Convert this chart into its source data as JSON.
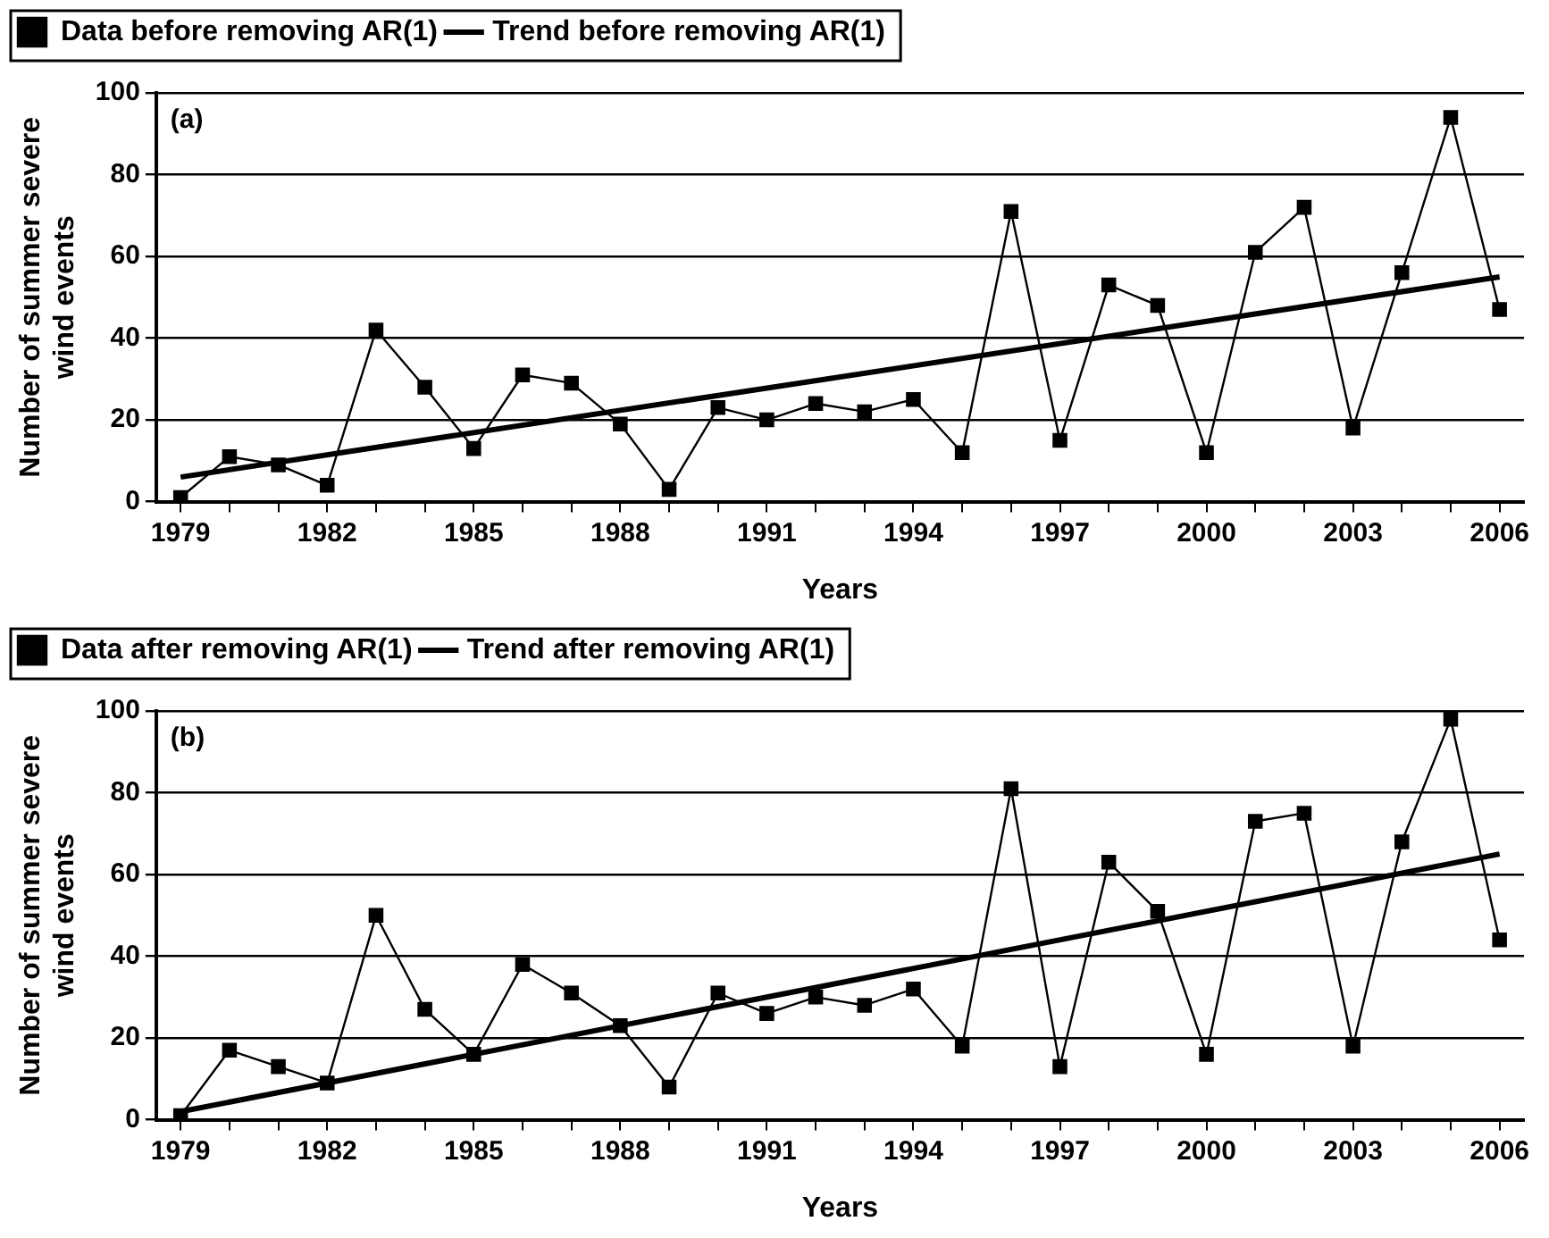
{
  "chart_data": [
    {
      "type": "line",
      "xlabel": "Years",
      "ylabel": "Number of summer severe wind events",
      "annotations": [
        "(a)"
      ],
      "categories": [
        "1979",
        null,
        null,
        "1982",
        null,
        null,
        "1985",
        null,
        null,
        "1988",
        null,
        null,
        "1991",
        null,
        null,
        "1994",
        null,
        null,
        "1997",
        null,
        null,
        "2000",
        null,
        null,
        "2003",
        null,
        null,
        "2006"
      ],
      "series": [
        {
          "name": "Data before removing AR(1)",
          "color": "#000000",
          "marker": "square",
          "values": [
            1,
            11,
            9,
            4,
            42,
            28,
            13,
            31,
            29,
            19,
            3,
            23,
            20,
            24,
            22,
            25,
            12,
            71,
            15,
            53,
            48,
            12,
            61,
            72,
            18,
            56,
            94,
            47
          ]
        },
        {
          "name": "Trend before removing AR(1)",
          "color": "#000000",
          "marker": "none",
          "values": [
            6,
            null,
            null,
            null,
            null,
            null,
            null,
            null,
            null,
            null,
            null,
            null,
            null,
            null,
            null,
            null,
            null,
            null,
            null,
            null,
            null,
            null,
            null,
            null,
            null,
            null,
            null,
            55
          ]
        }
      ],
      "ylim": [
        0,
        100
      ],
      "yticks": [
        0,
        20,
        40,
        60,
        80,
        100
      ],
      "grid": "y",
      "legend": "top left"
    },
    {
      "type": "line",
      "xlabel": "Years",
      "ylabel": "Number of summer severe wind events",
      "annotations": [
        "(b)"
      ],
      "categories": [
        "1979",
        null,
        null,
        "1982",
        null,
        null,
        "1985",
        null,
        null,
        "1988",
        null,
        null,
        "1991",
        null,
        null,
        "1994",
        null,
        null,
        "1997",
        null,
        null,
        "2000",
        null,
        null,
        "2003",
        null,
        null,
        "2006"
      ],
      "series": [
        {
          "name": "Data after removing AR(1)",
          "color": "#000000",
          "marker": "square",
          "values": [
            1,
            17,
            13,
            9,
            50,
            27,
            16,
            38,
            31,
            23,
            8,
            31,
            26,
            30,
            28,
            32,
            18,
            81,
            13,
            63,
            51,
            16,
            73,
            75,
            18,
            68,
            98,
            44
          ]
        },
        {
          "name": "Trend after removing AR(1)",
          "color": "#000000",
          "marker": "none",
          "values": [
            2,
            null,
            null,
            null,
            null,
            null,
            null,
            null,
            null,
            null,
            null,
            null,
            null,
            null,
            null,
            null,
            null,
            null,
            null,
            null,
            null,
            null,
            null,
            null,
            null,
            null,
            null,
            65
          ]
        }
      ],
      "ylim": [
        0,
        100
      ],
      "yticks": [
        0,
        20,
        40,
        60,
        80,
        100
      ],
      "grid": "y",
      "legend": "top left"
    }
  ]
}
